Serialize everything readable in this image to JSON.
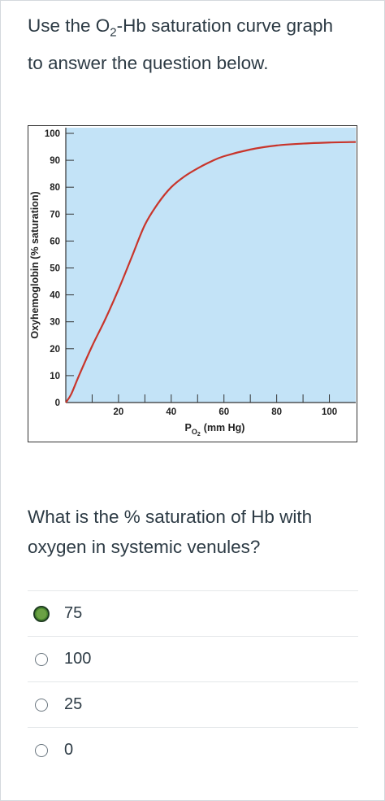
{
  "intro": {
    "line1_pre": "Use the O",
    "line1_sub": "2",
    "line1_post": "-Hb saturation curve graph",
    "line2": "to answer the question below."
  },
  "chart_data": {
    "type": "line",
    "xlabel_main": "P",
    "xlabel_sub": "O",
    "xlabel_subsub": "2",
    "xlabel_unit": "(mm Hg)",
    "ylabel": "Oxyhemoglobin (% saturation)",
    "xlim": [
      0,
      110
    ],
    "ylim": [
      0,
      100
    ],
    "x_ticks": [
      0,
      10,
      20,
      30,
      40,
      50,
      60,
      70,
      80,
      90,
      100
    ],
    "x_tick_labels": [
      "20",
      "40",
      "60",
      "80",
      "100"
    ],
    "x_tick_label_values": [
      20,
      40,
      60,
      80,
      100
    ],
    "y_ticks": [
      0,
      10,
      20,
      30,
      40,
      50,
      60,
      70,
      80,
      90,
      100
    ],
    "y_tick_labels": [
      "0",
      "10",
      "20",
      "30",
      "40",
      "50",
      "60",
      "70",
      "80",
      "90",
      "100"
    ],
    "grid": false,
    "colors": {
      "plot_bg": "#c3e3f7",
      "curve": "#c8352b",
      "axis": "#333333"
    },
    "series": [
      {
        "x": [
          0,
          2,
          5,
          10,
          15,
          20,
          25,
          30,
          35,
          40,
          45,
          50,
          55,
          60,
          70,
          80,
          90,
          100,
          110
        ],
        "y": [
          0,
          3,
          10,
          21,
          31,
          42,
          54,
          66,
          74,
          80,
          84,
          87,
          89.5,
          91.5,
          94,
          95.5,
          96.2,
          96.6,
          96.8
        ]
      }
    ]
  },
  "question": {
    "line1": "What is the % saturation of Hb with",
    "line2": "oxygen in systemic venules?"
  },
  "answers": [
    {
      "label": "75",
      "selected": true
    },
    {
      "label": "100",
      "selected": false
    },
    {
      "label": "25",
      "selected": false
    },
    {
      "label": "0",
      "selected": false
    }
  ]
}
